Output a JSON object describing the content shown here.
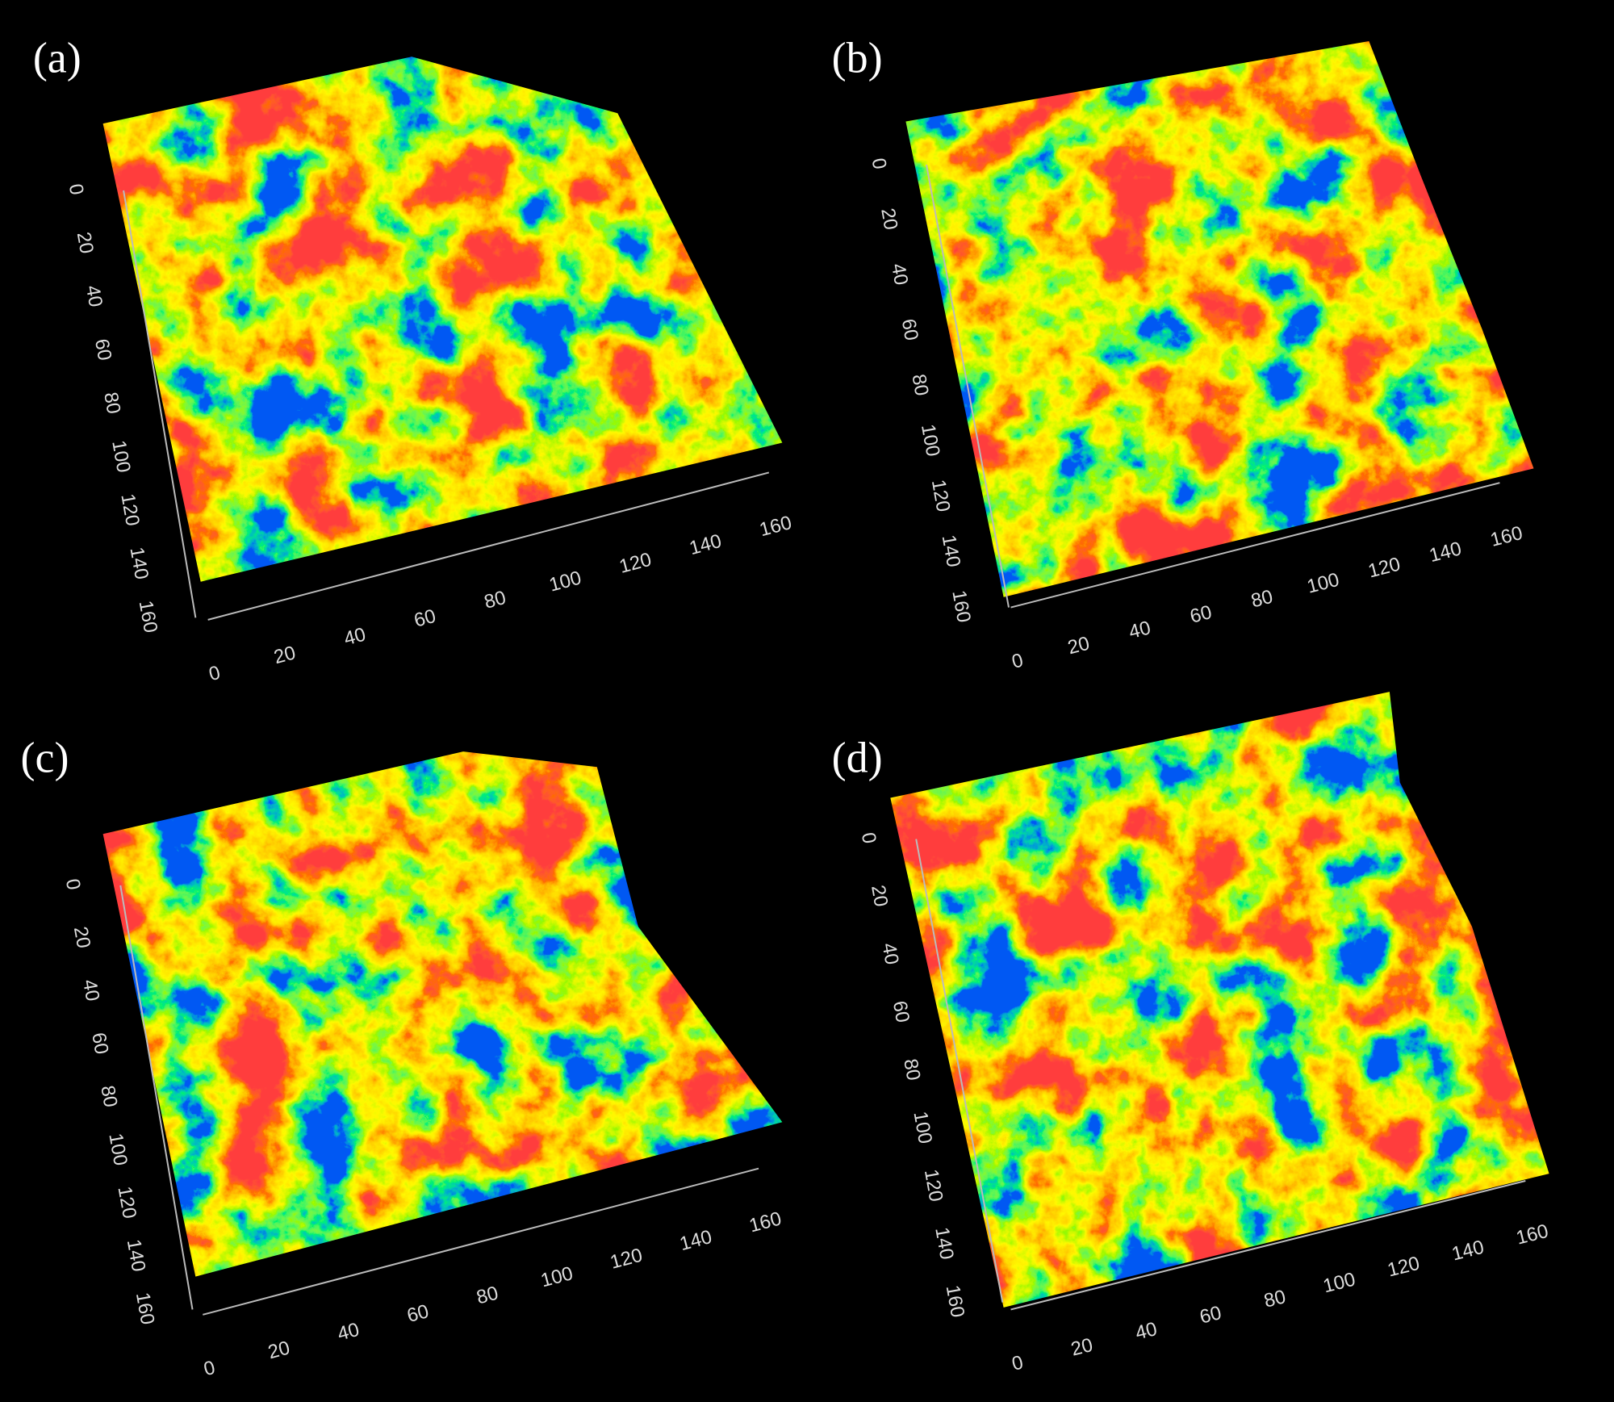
{
  "panels": [
    {
      "label": "(a)",
      "x_ticks": [
        0,
        20,
        40,
        60,
        80,
        100,
        120,
        140,
        160
      ],
      "y_ticks": [
        0,
        20,
        40,
        60,
        80,
        100,
        120,
        140,
        160
      ]
    },
    {
      "label": "(b)",
      "x_ticks": [
        0,
        20,
        40,
        60,
        80,
        100,
        120,
        140,
        160
      ],
      "y_ticks": [
        0,
        20,
        40,
        60,
        80,
        100,
        120,
        140,
        160
      ]
    },
    {
      "label": "(c)",
      "x_ticks": [
        0,
        20,
        40,
        60,
        80,
        100,
        120,
        140,
        160
      ],
      "y_ticks": [
        0,
        20,
        40,
        60,
        80,
        100,
        120,
        140,
        160
      ]
    },
    {
      "label": "(d)",
      "x_ticks": [
        0,
        20,
        40,
        60,
        80,
        100,
        120,
        140,
        160
      ],
      "y_ticks": [
        0,
        20,
        40,
        60,
        80,
        100,
        120,
        140,
        160
      ]
    }
  ]
}
